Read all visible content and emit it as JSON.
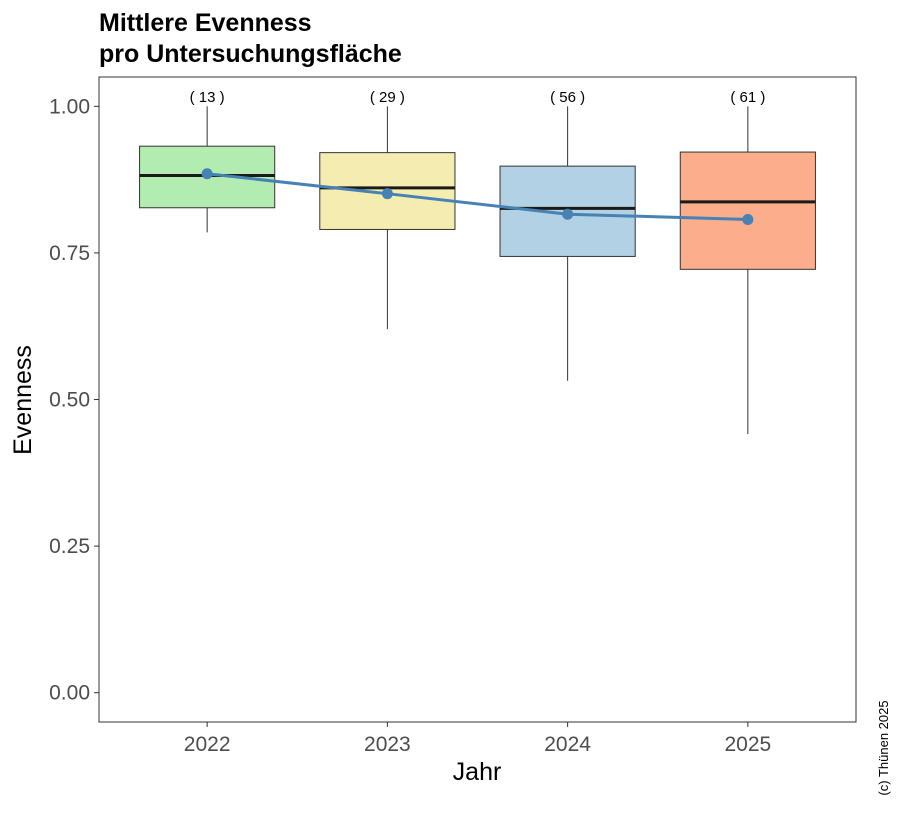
{
  "chart_data": {
    "type": "box",
    "title_line1": "Mittlere Evenness",
    "title_line2": "pro Untersuchungsfläche",
    "xlabel": "Jahr",
    "ylabel": "Evenness",
    "ylim": [
      -0.05,
      1.05
    ],
    "yticks": [
      "0.00",
      "0.25",
      "0.50",
      "0.75",
      "1.00"
    ],
    "ytick_values": [
      0,
      0.25,
      0.5,
      0.75,
      1.0
    ],
    "grid": false,
    "categories": [
      "2022",
      "2023",
      "2024",
      "2025"
    ],
    "count_labels": [
      "( 13 )",
      "( 29 )",
      "( 56 )",
      "( 61 )"
    ],
    "boxes": [
      {
        "category": "2022",
        "whisker_low": 0.785,
        "q1": 0.827,
        "median": 0.882,
        "q3": 0.932,
        "whisker_high": 1.0,
        "color": "#b3ecb0"
      },
      {
        "category": "2023",
        "whisker_low": 0.62,
        "q1": 0.79,
        "median": 0.861,
        "q3": 0.921,
        "whisker_high": 1.0,
        "color": "#f5edb0"
      },
      {
        "category": "2024",
        "whisker_low": 0.532,
        "q1": 0.744,
        "median": 0.826,
        "q3": 0.898,
        "whisker_high": 1.0,
        "color": "#b3d1e4"
      },
      {
        "category": "2025",
        "whisker_low": 0.441,
        "q1": 0.722,
        "median": 0.837,
        "q3": 0.922,
        "whisker_high": 1.0,
        "color": "#fcae8c"
      }
    ],
    "mean_series": {
      "values": [
        0.885,
        0.851,
        0.816,
        0.807
      ],
      "color": "#4682b4"
    },
    "copyright": "(c) Thünen 2025"
  }
}
